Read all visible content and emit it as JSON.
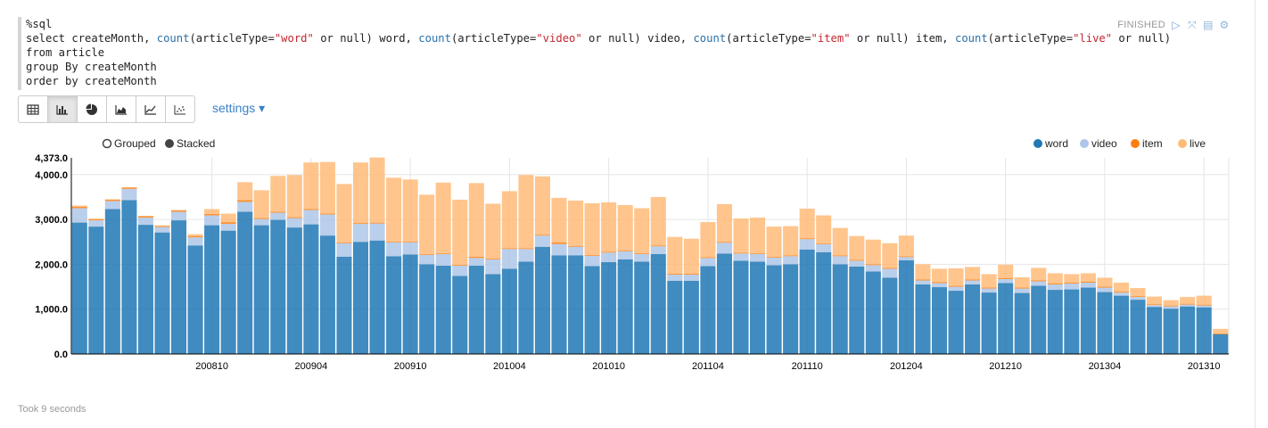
{
  "code": {
    "lines": [
      "%sql",
      "select createMonth, count(articleType=\"word\" or null) word, count(articleType=\"video\" or null) video, count(articleType=\"item\" or null) item, count(articleType=\"live\" or null) live",
      "from article",
      "group By createMonth",
      "order by createMonth"
    ]
  },
  "status": {
    "label": "FINISHED"
  },
  "toolbar": {
    "buttons": [
      "table-icon",
      "bar-chart-icon",
      "pie-chart-icon",
      "area-chart-icon",
      "line-chart-icon",
      "scatter-chart-icon"
    ],
    "active_index": 1,
    "settings_label": "settings ▾"
  },
  "controls": {
    "grouped_label": "Grouped",
    "stacked_label": "Stacked",
    "mode": "stacked"
  },
  "legend": [
    "word",
    "video",
    "item",
    "live"
  ],
  "colors": {
    "word": "#1f77b4",
    "video": "#aec7e8",
    "item": "#ff7f0e",
    "live": "#ffbb78"
  },
  "footer": {
    "took": "Took 9 seconds"
  },
  "chart_data": {
    "type": "bar",
    "stacked": true,
    "ylim": [
      0,
      4373
    ],
    "y_ticks": [
      0,
      1000,
      2000,
      3000,
      4000,
      4373
    ],
    "y_tick_labels": [
      "0.0",
      "1,000.0",
      "2,000.0",
      "3,000.0",
      "4,000.0",
      "4,373.0"
    ],
    "x_tick_labels": [
      {
        "index": 8,
        "label": "200810"
      },
      {
        "index": 14,
        "label": "200904"
      },
      {
        "index": 20,
        "label": "200910"
      },
      {
        "index": 26,
        "label": "201004"
      },
      {
        "index": 32,
        "label": "201010"
      },
      {
        "index": 38,
        "label": "201104"
      },
      {
        "index": 44,
        "label": "201110"
      },
      {
        "index": 50,
        "label": "201204"
      },
      {
        "index": 56,
        "label": "201210"
      },
      {
        "index": 62,
        "label": "201304"
      },
      {
        "index": 68,
        "label": "201310"
      }
    ],
    "grid": true,
    "legend_position": "top-right",
    "series": [
      {
        "name": "word",
        "values": [
          2930,
          2840,
          3230,
          3430,
          2880,
          2710,
          2980,
          2420,
          2870,
          2750,
          3170,
          2870,
          2990,
          2820,
          2890,
          2640,
          2170,
          2500,
          2530,
          2180,
          2220,
          2000,
          1970,
          1740,
          1970,
          1780,
          1900,
          2060,
          2390,
          2200,
          2200,
          1960,
          2050,
          2110,
          2060,
          2230,
          1630,
          1630,
          1960,
          2240,
          2080,
          2060,
          1980,
          2000,
          2330,
          2270,
          2000,
          1950,
          1840,
          1700,
          2090,
          1550,
          1490,
          1410,
          1550,
          1370,
          1580,
          1360,
          1520,
          1430,
          1440,
          1480,
          1380,
          1300,
          1210,
          1050,
          1010,
          1060,
          1040,
          440
        ]
      },
      {
        "name": "video",
        "values": [
          320,
          140,
          180,
          250,
          160,
          120,
          190,
          180,
          220,
          150,
          220,
          140,
          160,
          210,
          320,
          470,
          300,
          400,
          380,
          310,
          270,
          210,
          260,
          230,
          170,
          330,
          440,
          280,
          250,
          250,
          190,
          230,
          210,
          180,
          170,
          170,
          140,
          140,
          180,
          240,
          160,
          170,
          170,
          180,
          230,
          180,
          180,
          130,
          140,
          200,
          70,
          90,
          90,
          90,
          90,
          90,
          90,
          100,
          100,
          120,
          130,
          110,
          100,
          70,
          60,
          40,
          50,
          40,
          40,
          0
        ]
      },
      {
        "name": "item",
        "values": [
          30,
          20,
          30,
          30,
          30,
          20,
          30,
          30,
          30,
          40,
          40,
          20,
          20,
          20,
          20,
          20,
          20,
          20,
          20,
          20,
          20,
          20,
          20,
          20,
          30,
          20,
          20,
          20,
          20,
          40,
          20,
          20,
          20,
          20,
          20,
          20,
          20,
          20,
          20,
          20,
          20,
          20,
          20,
          20,
          20,
          20,
          20,
          20,
          20,
          20,
          20,
          20,
          20,
          20,
          20,
          20,
          20,
          20,
          20,
          20,
          20,
          20,
          20,
          20,
          20,
          20,
          20,
          20,
          20,
          20
        ]
      },
      {
        "name": "live",
        "values": [
          30,
          20,
          10,
          10,
          10,
          20,
          10,
          40,
          110,
          190,
          400,
          620,
          800,
          940,
          1040,
          1150,
          1300,
          1350,
          1450,
          1420,
          1380,
          1320,
          1570,
          1450,
          1640,
          1220,
          1270,
          1630,
          1300,
          990,
          1010,
          1150,
          1100,
          1010,
          1000,
          1080,
          820,
          780,
          780,
          840,
          760,
          790,
          670,
          650,
          660,
          620,
          610,
          530,
          550,
          550,
          460,
          340,
          300,
          390,
          280,
          300,
          300,
          230,
          280,
          230,
          190,
          190,
          200,
          200,
          180,
          170,
          120,
          150,
          200,
          100
        ]
      }
    ]
  }
}
